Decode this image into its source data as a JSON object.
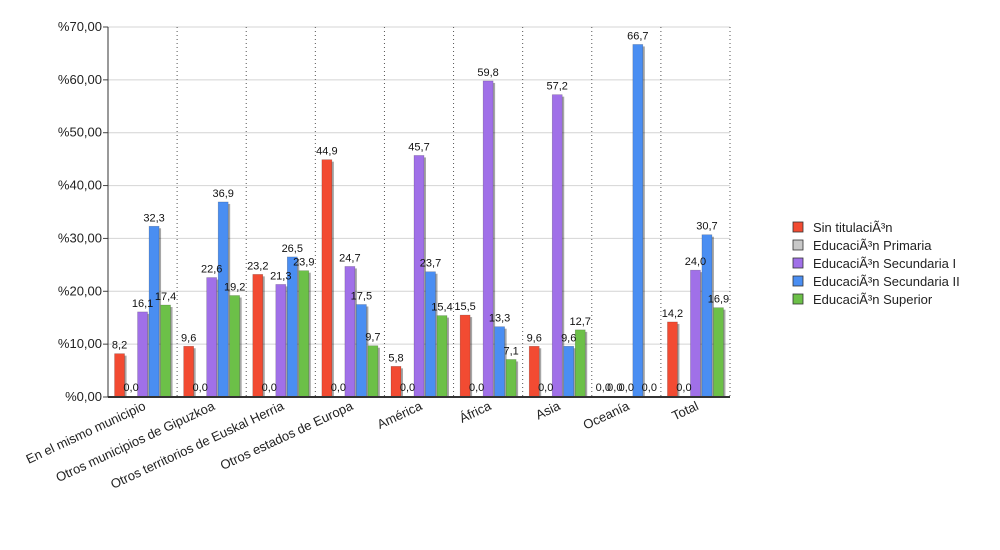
{
  "chart_data": {
    "type": "bar",
    "categories": [
      "En el mismo municipio",
      "Otros municipios de Gipuzkoa",
      "Otros territorios de Euskal Herria",
      "Otros estados de Europa",
      "América",
      "África",
      "Asia",
      "Oceanía",
      "Total"
    ],
    "series": [
      {
        "name": "Sin titulaciÃ³n",
        "color": "#f24b32",
        "values": [
          8.2,
          9.6,
          23.2,
          44.9,
          5.8,
          15.5,
          9.6,
          0.0,
          14.2
        ],
        "labels": [
          "8,2",
          "9,6",
          "23,2",
          "44,9",
          "5,8",
          "15,5",
          "9,6",
          "0,0",
          "14,2"
        ]
      },
      {
        "name": "EducaciÃ³n Primaria",
        "color": "#c8c8c8",
        "values": [
          0.0,
          0.0,
          0.0,
          0.0,
          0.0,
          0.0,
          0.0,
          0.0,
          0.0
        ],
        "labels": [
          "0,0",
          "0,0",
          "0,0",
          "0,0",
          "0,0",
          "0,0",
          "0,0",
          "0,0",
          "0,0"
        ]
      },
      {
        "name": "EducaciÃ³n Secundaria I",
        "color": "#a070e8",
        "values": [
          16.1,
          22.6,
          21.3,
          24.7,
          45.7,
          59.8,
          57.2,
          0.0,
          24.0
        ],
        "labels": [
          "16,1",
          "22,6",
          "21,3",
          "24,7",
          "45,7",
          "59,8",
          "57,2",
          "0,0",
          "24,0"
        ]
      },
      {
        "name": "EducaciÃ³n Secundaria II",
        "color": "#4a8ef2",
        "values": [
          32.3,
          36.9,
          26.5,
          17.5,
          23.7,
          13.3,
          9.6,
          66.7,
          30.7
        ],
        "labels": [
          "32,3",
          "36,9",
          "26,5",
          "17,5",
          "23,7",
          "13,3",
          "9,6",
          "66,7",
          "30,7"
        ]
      },
      {
        "name": "EducaciÃ³n Superior",
        "color": "#6cc048",
        "values": [
          17.4,
          19.2,
          23.9,
          9.7,
          15.4,
          7.1,
          12.7,
          0.0,
          16.9
        ],
        "labels": [
          "17,4",
          "19,2",
          "23,9",
          "9,7",
          "15,4",
          "7,1",
          "12,7",
          "0,0",
          "16,9"
        ]
      }
    ],
    "y_ticks": [
      0,
      10,
      20,
      30,
      40,
      50,
      60,
      70
    ],
    "y_tick_labels": [
      "%0,00",
      "%10,00",
      "%20,00",
      "%30,00",
      "%40,00",
      "%50,00",
      "%60,00",
      "%70,00"
    ],
    "ylim": [
      0,
      70
    ],
    "grid": true,
    "legend_position": "right"
  }
}
